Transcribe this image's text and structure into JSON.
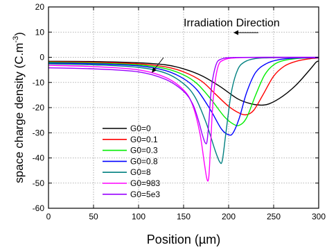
{
  "chart_data": {
    "type": "line",
    "xlabel": "Position (µm)",
    "ylabel": "space charge density (C.m",
    "ylabel_sup": "-3",
    "ylabel_close": ")",
    "xlim": [
      0,
      300
    ],
    "ylim": [
      -60,
      20
    ],
    "xticks": [
      0,
      50,
      100,
      150,
      200,
      250,
      300
    ],
    "yticks": [
      -60,
      -50,
      -40,
      -30,
      -20,
      -10,
      0,
      10,
      20
    ],
    "grid": true,
    "legend_position": "lower-left",
    "annotations": [
      {
        "text": "Irradiation Direction",
        "arrow": "left"
      }
    ],
    "series": [
      {
        "name": "G0=0",
        "color": "#000000",
        "x": [
          0,
          50,
          100,
          130,
          150,
          170,
          190,
          210,
          225,
          235,
          245,
          260,
          275,
          290,
          297,
          300
        ],
        "y": [
          -1.6,
          -1.7,
          -2.2,
          -3.0,
          -4.6,
          -7.3,
          -11.5,
          -16.5,
          -18.5,
          -19.0,
          -18.5,
          -15.5,
          -11.0,
          -5.0,
          -2.0,
          -1.5
        ]
      },
      {
        "name": "G0=0.1",
        "color": "#ff0000",
        "x": [
          0,
          50,
          100,
          130,
          150,
          170,
          185,
          200,
          212,
          220,
          228,
          238,
          250,
          262,
          275,
          290,
          300
        ],
        "y": [
          -1.8,
          -2.0,
          -2.6,
          -3.8,
          -5.8,
          -9.5,
          -14.5,
          -19.5,
          -22.2,
          -22.8,
          -21.0,
          -15.0,
          -7.5,
          -3.5,
          -1.6,
          -0.6,
          -0.3
        ]
      },
      {
        "name": "G0=0.3",
        "color": "#00ee00",
        "x": [
          0,
          50,
          100,
          130,
          150,
          165,
          180,
          195,
          205,
          212,
          220,
          230,
          240,
          250,
          262,
          280,
          300
        ],
        "y": [
          -2.0,
          -2.3,
          -3.0,
          -4.5,
          -7.0,
          -10.5,
          -16.5,
          -23.5,
          -26.5,
          -27.0,
          -24.0,
          -15.0,
          -7.0,
          -3.0,
          -1.2,
          -0.4,
          -0.2
        ]
      },
      {
        "name": "G0=0.8",
        "color": "#0000ff",
        "x": [
          0,
          50,
          100,
          130,
          150,
          165,
          180,
          192,
          200,
          205,
          212,
          220,
          230,
          242,
          255,
          275,
          300
        ],
        "y": [
          -2.3,
          -2.6,
          -3.4,
          -5.3,
          -8.5,
          -13.0,
          -21.0,
          -28.5,
          -30.8,
          -30.0,
          -24.0,
          -14.0,
          -6.0,
          -2.5,
          -1.0,
          -0.3,
          -0.2
        ]
      },
      {
        "name": "G0=8",
        "color": "#008080",
        "x": [
          0,
          50,
          100,
          130,
          150,
          163,
          175,
          185,
          190,
          193,
          197,
          203,
          210,
          218,
          230,
          250,
          300
        ],
        "y": [
          -2.6,
          -3.0,
          -4.0,
          -6.3,
          -10.5,
          -16.0,
          -26.0,
          -37.0,
          -41.5,
          -41.0,
          -30.0,
          -14.0,
          -5.0,
          -1.8,
          -0.5,
          -0.2,
          -0.1
        ]
      },
      {
        "name": "G0=983",
        "color": "#ff00ff",
        "x": [
          0,
          50,
          100,
          130,
          150,
          160,
          168,
          173,
          176,
          178,
          180,
          183,
          188,
          195,
          210,
          240,
          300
        ],
        "y": [
          -3.2,
          -3.7,
          -5.0,
          -8.0,
          -13.0,
          -19.0,
          -30.0,
          -42.0,
          -48.5,
          -47.5,
          -35.0,
          -16.0,
          -4.0,
          -1.0,
          -0.2,
          -0.1,
          -0.1
        ]
      },
      {
        "name": "G0=5e3",
        "color": "#9900ff",
        "x": [
          0,
          50,
          100,
          130,
          150,
          160,
          166,
          171,
          174,
          176,
          178,
          181,
          186,
          192,
          205,
          240,
          300
        ],
        "y": [
          -4.2,
          -4.6,
          -5.8,
          -8.8,
          -13.5,
          -18.5,
          -24.5,
          -31.0,
          -34.0,
          -33.5,
          -26.0,
          -12.0,
          -3.0,
          -0.7,
          -0.1,
          0.0,
          0.0
        ]
      }
    ]
  }
}
